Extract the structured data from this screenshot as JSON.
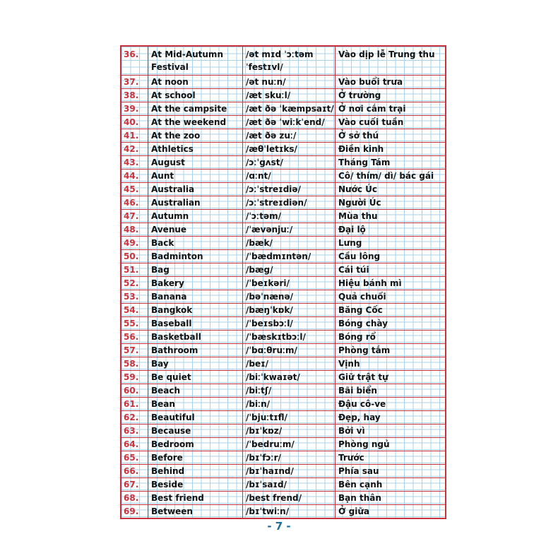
{
  "rows": [
    {
      "num": "36.",
      "word": "At Mid-Autumn Festival",
      "ipa": "/ət mɪd ˈɔːtəm ˈfestɪvl/",
      "meaning": "Vào dịp lễ Trung thu"
    },
    {
      "num": "37.",
      "word": "At noon",
      "ipa": "/ət nuːn/",
      "meaning": "Vào buổi trưa"
    },
    {
      "num": "38.",
      "word": "At school",
      "ipa": "/æt skuːl/",
      "meaning": "Ở trường"
    },
    {
      "num": "39.",
      "word": "At the campsite",
      "ipa": "/æt ðə ˈkæmpsaɪt/",
      "meaning": "Ở nơi cắm trại"
    },
    {
      "num": "40.",
      "word": "At the weekend",
      "ipa": "/æt ðə ˈwiːkˈend/",
      "meaning": "Vào cuối tuần"
    },
    {
      "num": "41.",
      "word": "At the zoo",
      "ipa": "/æt ðə zuː/",
      "meaning": "Ở sở thú"
    },
    {
      "num": "42.",
      "word": "Athletics",
      "ipa": "/æθˈletɪks/",
      "meaning": "Điền kinh"
    },
    {
      "num": "43.",
      "word": "August",
      "ipa": "/ɔːˈgʌst/",
      "meaning": "Tháng Tám"
    },
    {
      "num": "44.",
      "word": "Aunt",
      "ipa": "/ɑːnt/",
      "meaning": "Cô/ thím/ dì/ bác gái"
    },
    {
      "num": "45.",
      "word": "Australia",
      "ipa": "/ɔːˈstreɪdiə/",
      "meaning": "Nước Úc"
    },
    {
      "num": "46.",
      "word": "Australian",
      "ipa": "/ɔːˈstreɪdiən/",
      "meaning": "Người Úc"
    },
    {
      "num": "47.",
      "word": "Autumn",
      "ipa": "/ˈɔːtəm/",
      "meaning": "Mùa thu"
    },
    {
      "num": "48.",
      "word": "Avenue",
      "ipa": "/ˈævənjuː/",
      "meaning": "Đại lộ"
    },
    {
      "num": "49.",
      "word": "Back",
      "ipa": "/bæk/",
      "meaning": "Lưng"
    },
    {
      "num": "50.",
      "word": "Badminton",
      "ipa": "/ˈbædmɪntən/",
      "meaning": "Cầu lông"
    },
    {
      "num": "51.",
      "word": "Bag",
      "ipa": "/bæg/",
      "meaning": "Cái túi"
    },
    {
      "num": "52.",
      "word": "Bakery",
      "ipa": "/ˈbeɪkəri/",
      "meaning": "Hiệu bánh mì"
    },
    {
      "num": "53.",
      "word": "Banana",
      "ipa": "/bəˈnænə/",
      "meaning": "Quả chuối"
    },
    {
      "num": "54.",
      "word": "Bangkok",
      "ipa": "/bæŋˈkɒk/",
      "meaning": "Băng Cốc"
    },
    {
      "num": "55.",
      "word": "Baseball",
      "ipa": "/ˈbeɪsbɔːl/",
      "meaning": "Bóng chày"
    },
    {
      "num": "56.",
      "word": "Basketball",
      "ipa": "/ˈbæskɪtbɔːl/",
      "meaning": "Bóng rổ"
    },
    {
      "num": "57.",
      "word": "Bathroom",
      "ipa": "/ˈbɑːθruːm/",
      "meaning": "Phòng tắm"
    },
    {
      "num": "58.",
      "word": "Bay",
      "ipa": "/beɪ/",
      "meaning": "Vịnh"
    },
    {
      "num": "59.",
      "word": "Be quiet",
      "ipa": "/biːˈkwaɪət/",
      "meaning": "Giữ trật tự"
    },
    {
      "num": "60.",
      "word": "Beach",
      "ipa": "/biːtʃ/",
      "meaning": "Bãi biển"
    },
    {
      "num": "61.",
      "word": "Bean",
      "ipa": "/biːn/",
      "meaning": "Đậu cô-ve"
    },
    {
      "num": "62.",
      "word": "Beautiful",
      "ipa": "/ˈbjuːtɪfl/",
      "meaning": "Đẹp, hay"
    },
    {
      "num": "63.",
      "word": "Because",
      "ipa": "/bɪˈkɒz/",
      "meaning": "Bởi vì"
    },
    {
      "num": "64.",
      "word": "Bedroom",
      "ipa": "/ˈbedruːm/",
      "meaning": "Phòng ngủ"
    },
    {
      "num": "65.",
      "word": "Before",
      "ipa": "/bɪˈfɔːr/",
      "meaning": "Trước"
    },
    {
      "num": "66.",
      "word": "Behind",
      "ipa": "/bɪˈhaɪnd/",
      "meaning": "Phía sau"
    },
    {
      "num": "67.",
      "word": "Beside",
      "ipa": "/bɪˈsaɪd/",
      "meaning": "Bên cạnh"
    },
    {
      "num": "68.",
      "word": "Best friend",
      "ipa": "/best frend/",
      "meaning": "Bạn thân"
    },
    {
      "num": "69.",
      "word": "Between",
      "ipa": "/bɪˈtwiːn/",
      "meaning": "Ở giữa"
    }
  ],
  "page_number": "- 7 -",
  "colors": {
    "border": "#c8323c",
    "grid": "#a9d3ea",
    "page_number": "#1f6d99"
  }
}
